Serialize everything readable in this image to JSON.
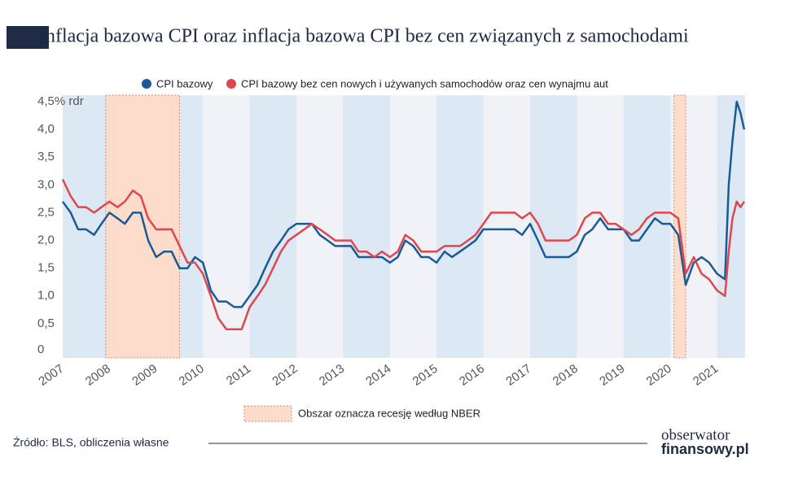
{
  "chart_data": {
    "type": "line",
    "title": "Inflacja bazowa CPI oraz inflacja bazowa CPI bez cen związanych z samochodami",
    "x": [
      2007,
      2007.17,
      2007.33,
      2007.5,
      2007.67,
      2007.83,
      2008,
      2008.17,
      2008.33,
      2008.5,
      2008.67,
      2008.83,
      2009,
      2009.17,
      2009.33,
      2009.5,
      2009.67,
      2009.83,
      2010,
      2010.17,
      2010.33,
      2010.5,
      2010.67,
      2010.83,
      2011,
      2011.17,
      2011.33,
      2011.5,
      2011.67,
      2011.83,
      2012,
      2012.17,
      2012.33,
      2012.5,
      2012.67,
      2012.83,
      2013,
      2013.17,
      2013.33,
      2013.5,
      2013.67,
      2013.83,
      2014,
      2014.17,
      2014.33,
      2014.5,
      2014.67,
      2014.83,
      2015,
      2015.17,
      2015.33,
      2015.5,
      2015.67,
      2015.83,
      2016,
      2016.17,
      2016.33,
      2016.5,
      2016.67,
      2016.83,
      2017,
      2017.17,
      2017.33,
      2017.5,
      2017.67,
      2017.83,
      2018,
      2018.17,
      2018.33,
      2018.5,
      2018.67,
      2018.83,
      2019,
      2019.17,
      2019.33,
      2019.5,
      2019.67,
      2019.83,
      2020,
      2020.17,
      2020.33,
      2020.5,
      2020.67,
      2020.83,
      2021,
      2021.17,
      2021.25,
      2021.33,
      2021.42,
      2021.5,
      2021.58
    ],
    "series": [
      {
        "name": "CPI bazowy",
        "color": "#1a5a96",
        "values": [
          2.7,
          2.5,
          2.2,
          2.2,
          2.1,
          2.3,
          2.5,
          2.4,
          2.3,
          2.5,
          2.5,
          2.0,
          1.7,
          1.8,
          1.8,
          1.5,
          1.5,
          1.7,
          1.6,
          1.1,
          0.9,
          0.9,
          0.8,
          0.8,
          1.0,
          1.2,
          1.5,
          1.8,
          2.0,
          2.2,
          2.3,
          2.3,
          2.3,
          2.1,
          2.0,
          1.9,
          1.9,
          1.9,
          1.7,
          1.7,
          1.7,
          1.7,
          1.6,
          1.7,
          2.0,
          1.9,
          1.7,
          1.7,
          1.6,
          1.8,
          1.7,
          1.8,
          1.9,
          2.0,
          2.2,
          2.2,
          2.2,
          2.2,
          2.2,
          2.1,
          2.3,
          2.0,
          1.7,
          1.7,
          1.7,
          1.7,
          1.8,
          2.1,
          2.2,
          2.4,
          2.2,
          2.2,
          2.2,
          2.0,
          2.0,
          2.2,
          2.4,
          2.3,
          2.3,
          2.1,
          1.2,
          1.6,
          1.7,
          1.6,
          1.4,
          1.3,
          3.0,
          3.8,
          4.5,
          4.3,
          4.0
        ]
      },
      {
        "name": "CPI bazowy bez cen nowych i używanych samochodów oraz cen wynajmu aut",
        "color": "#e0464f",
        "values": [
          3.1,
          2.8,
          2.6,
          2.6,
          2.5,
          2.6,
          2.7,
          2.6,
          2.7,
          2.9,
          2.8,
          2.4,
          2.2,
          2.2,
          2.2,
          1.9,
          1.6,
          1.6,
          1.4,
          1.0,
          0.6,
          0.4,
          0.4,
          0.4,
          0.8,
          1.0,
          1.2,
          1.5,
          1.8,
          2.0,
          2.1,
          2.2,
          2.3,
          2.2,
          2.1,
          2.0,
          2.0,
          2.0,
          1.8,
          1.8,
          1.7,
          1.8,
          1.7,
          1.8,
          2.1,
          2.0,
          1.8,
          1.8,
          1.8,
          1.9,
          1.9,
          1.9,
          2.0,
          2.1,
          2.3,
          2.5,
          2.5,
          2.5,
          2.5,
          2.4,
          2.5,
          2.3,
          2.0,
          2.0,
          2.0,
          2.0,
          2.1,
          2.4,
          2.5,
          2.5,
          2.3,
          2.3,
          2.2,
          2.1,
          2.2,
          2.4,
          2.5,
          2.5,
          2.5,
          2.4,
          1.4,
          1.7,
          1.4,
          1.3,
          1.1,
          1.0,
          1.8,
          2.4,
          2.7,
          2.6,
          2.7
        ]
      }
    ],
    "xlim": [
      2007,
      2021.6
    ],
    "xticks": [
      2007,
      2008,
      2009,
      2010,
      2011,
      2012,
      2013,
      2014,
      2015,
      2016,
      2017,
      2018,
      2019,
      2020,
      2021
    ],
    "ylim": [
      0,
      4.5
    ],
    "yticks": [
      0,
      {
        "value": 0.5,
        "label": "0,5"
      },
      {
        "value": 1,
        "label": "1,0"
      },
      {
        "value": 1.5,
        "label": "1,5"
      },
      {
        "value": 2,
        "label": "2,0"
      },
      {
        "value": 2.5,
        "label": "2,5"
      },
      {
        "value": 3,
        "label": "3,0"
      },
      {
        "value": 3.5,
        "label": "3,5"
      },
      {
        "value": 4,
        "label": "4,0"
      },
      {
        "value": 4.5,
        "label": "4,5% rdr"
      }
    ],
    "grid": false,
    "legend": "top",
    "recessions": [
      {
        "start": 2007.92,
        "end": 2009.5
      },
      {
        "start": 2020.08,
        "end": 2020.33
      }
    ],
    "recession_label": "Obszar oznacza recesję według NBER",
    "recession_color": "#fddccb"
  },
  "footer": {
    "source": "Źródło: BLS, obliczenia własne",
    "logo_top": "obserwator",
    "logo_bottom": "finansowy.pl"
  }
}
